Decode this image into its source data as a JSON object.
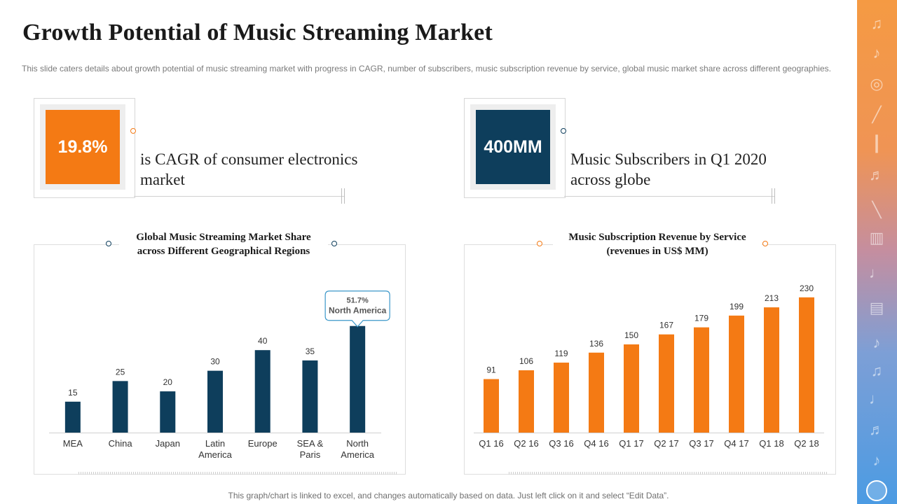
{
  "title": "Growth Potential of Music Streaming Market",
  "description": "This slide caters details about growth  potential of music streaming market with progress  in CAGR, number of subscribers, music subscription revenue  by service,  global music market share across different geographies.",
  "stats": [
    {
      "value": "19.8%",
      "text": "is CAGR of consumer electronics market",
      "color": "#f47a14"
    },
    {
      "value": "400MM",
      "text": "Music Subscribers in Q1 2020 across globe",
      "color": "#0e3e5c"
    }
  ],
  "colors": {
    "navy": "#0e3e5c",
    "orange": "#f47a14",
    "callout_border": "#3b97c9"
  },
  "chart_data": [
    {
      "type": "bar",
      "title": "Global Music Streaming  Market Share across Different Geographical   Regions",
      "title_lines": [
        "Global Music Streaming  Market Share",
        "across Different Geographical   Regions"
      ],
      "categories": [
        "MEA",
        "China",
        "Japan",
        "Latin America",
        "Europe",
        "SEA & Paris",
        "North America"
      ],
      "category_lines": [
        [
          "MEA"
        ],
        [
          "China"
        ],
        [
          "Japan"
        ],
        [
          "Latin",
          "America"
        ],
        [
          "Europe"
        ],
        [
          "SEA &",
          "Paris"
        ],
        [
          "North",
          "America"
        ]
      ],
      "values": [
        15,
        25,
        20,
        30,
        40,
        35,
        51.7
      ],
      "value_labels": [
        "15",
        "25",
        "20",
        "30",
        "40",
        "35",
        ""
      ],
      "ylim": [
        0,
        55
      ],
      "color": "#0e3e5c",
      "annotation": {
        "index": 6,
        "value_text": "51.7%",
        "label": "North America"
      }
    },
    {
      "type": "bar",
      "title": "Music Subscription  Revenue by Service (revenues in US$ MM)",
      "title_lines": [
        "Music Subscription  Revenue by Service",
        "(revenues in US$ MM)"
      ],
      "categories": [
        "Q1 16",
        "Q2 16",
        "Q3 16",
        "Q4 16",
        "Q1 17",
        "Q2 17",
        "Q3 17",
        "Q4 17",
        "Q1 18",
        "Q2 18"
      ],
      "category_lines": [
        [
          "Q1 16"
        ],
        [
          "Q2 16"
        ],
        [
          "Q3 16"
        ],
        [
          "Q4 16"
        ],
        [
          "Q1 17"
        ],
        [
          "Q2 17"
        ],
        [
          "Q3 17"
        ],
        [
          "Q4 17"
        ],
        [
          "Q1 18"
        ],
        [
          "Q2 18"
        ]
      ],
      "values": [
        91,
        106,
        119,
        136,
        150,
        167,
        179,
        199,
        213,
        230
      ],
      "value_labels": [
        "91",
        "106",
        "119",
        "136",
        "150",
        "167",
        "179",
        "199",
        "213",
        "230"
      ],
      "ylim": [
        0,
        250
      ],
      "color": "#f47a14"
    }
  ],
  "footnote": "This graph/chart is linked to excel,  and changes automatically based on data. Just left click on it and select “Edit Data”."
}
